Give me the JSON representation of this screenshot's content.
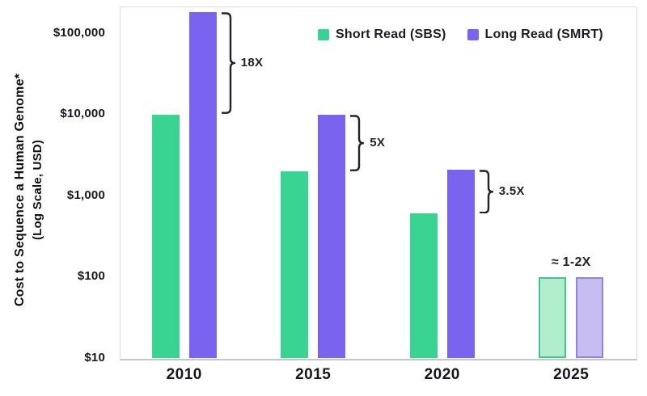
{
  "chart_data": {
    "type": "bar",
    "scale": "log",
    "categories": [
      "2010",
      "2015",
      "2020",
      "2025"
    ],
    "series": [
      {
        "name": "Short Read (SBS)",
        "color": "#39d392",
        "values": [
          10000,
          2000,
          600,
          100
        ]
      },
      {
        "name": "Long Read (SMRT)",
        "color": "#7a63ee",
        "values": [
          180000,
          10000,
          2100,
          100
        ]
      }
    ],
    "projected": {
      "category": "2025",
      "short_fill": "#b0eecd",
      "short_stroke": "#40c58c",
      "long_fill": "#c8bdf1",
      "long_stroke": "#9583d9"
    },
    "annotations": [
      {
        "category": "2010",
        "label": "18X",
        "style": "brace"
      },
      {
        "category": "2015",
        "label": "5X",
        "style": "brace"
      },
      {
        "category": "2020",
        "label": "3.5X",
        "style": "brace"
      },
      {
        "category": "2025",
        "label": "≈ 1-2X",
        "style": "text"
      }
    ],
    "y_axis": {
      "label_line1": "Cost to Sequence a Human Genome*",
      "label_line2": "(Log Scale, USD)",
      "ticks": [
        {
          "value": 100000,
          "label": "$100,000"
        },
        {
          "value": 10000,
          "label": "$10,000"
        },
        {
          "value": 1000,
          "label": "$1,000"
        },
        {
          "value": 100,
          "label": "$100"
        },
        {
          "value": 10,
          "label": "$10"
        }
      ],
      "range": [
        10,
        200000
      ]
    },
    "legend": {
      "position": "top-right"
    },
    "grid": false,
    "annotation_color": "#23232e"
  }
}
